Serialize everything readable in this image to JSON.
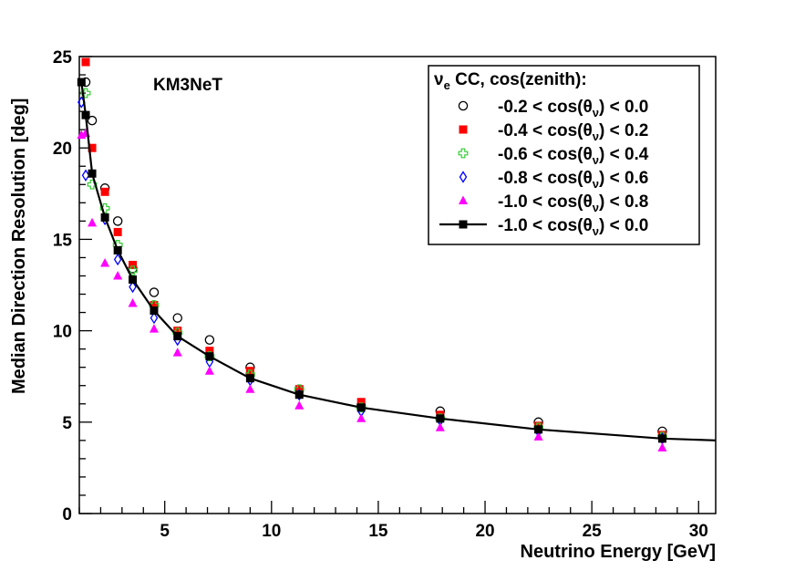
{
  "chart_data": {
    "type": "scatter",
    "title": "",
    "xlabel": "Neutrino Energy [GeV]",
    "ylabel": "Median Direction Resolution [deg]",
    "xlim": [
      1,
      30.8
    ],
    "ylim": [
      0,
      25
    ],
    "x_ticks": [
      5,
      10,
      15,
      20,
      25,
      30
    ],
    "y_ticks": [
      0,
      5,
      10,
      15,
      20,
      25
    ],
    "annotation": "KM3NeT",
    "legend": {
      "title_prefix": "ν",
      "title_sub": "e",
      "title_suffix": " CC, cos(zenith):",
      "position": "top-right"
    },
    "series": [
      {
        "name": "-0.2 < cos(θ",
        "name_sub": "ν",
        "name_tail": ") < 0.0",
        "marker": "open-circle",
        "color": "#000000",
        "x": [
          1.3,
          1.6,
          2.2,
          2.8,
          3.5,
          4.5,
          5.6,
          7.1,
          9.0,
          11.3,
          14.2,
          17.9,
          22.5,
          28.3
        ],
        "values": [
          23.6,
          21.5,
          17.8,
          16.0,
          13.4,
          12.1,
          10.7,
          9.5,
          8.0,
          6.8,
          5.9,
          5.6,
          5.0,
          4.5
        ]
      },
      {
        "name": "-0.4 < cos(θ",
        "name_sub": "ν",
        "name_tail": ") < 0.2",
        "marker": "filled-square",
        "color": "#ff0000",
        "x": [
          1.3,
          1.6,
          2.2,
          2.8,
          3.5,
          4.5,
          5.6,
          7.1,
          9.0,
          11.3,
          14.2,
          17.9,
          22.5,
          28.3
        ],
        "values": [
          24.7,
          20.0,
          17.6,
          15.4,
          13.6,
          11.4,
          10.0,
          8.9,
          7.8,
          6.8,
          6.1,
          5.4,
          4.8,
          4.3
        ]
      },
      {
        "name": "-0.6 < cos(θ",
        "name_sub": "ν",
        "name_tail": ") < 0.4",
        "marker": "open-cross",
        "color": "#33cc33",
        "x": [
          1.3,
          1.6,
          2.2,
          2.8,
          3.5,
          4.5,
          5.6,
          7.1,
          9.0,
          11.3,
          14.2,
          17.9,
          22.5,
          28.3
        ],
        "values": [
          23.0,
          18.0,
          16.7,
          14.7,
          13.3,
          11.4,
          9.9,
          8.6,
          7.6,
          6.8,
          5.8,
          5.2,
          4.7,
          4.2
        ]
      },
      {
        "name": "-0.8 < cos(θ",
        "name_sub": "ν",
        "name_tail": ") < 0.6",
        "marker": "open-diamond",
        "color": "#0000ff",
        "x": [
          1.1,
          1.3,
          2.2,
          2.8,
          3.5,
          4.5,
          5.6,
          7.1,
          9.0,
          11.3,
          14.2,
          17.9,
          22.5,
          28.3
        ],
        "values": [
          22.5,
          18.5,
          16.1,
          13.9,
          12.4,
          10.7,
          9.5,
          8.3,
          7.3,
          6.5,
          5.6,
          5.1,
          4.5,
          4.1
        ]
      },
      {
        "name": "-1.0 < cos(θ",
        "name_sub": "ν",
        "name_tail": ") < 0.8",
        "marker": "filled-triangle",
        "color": "#ff00ff",
        "x": [
          1.1,
          1.3,
          1.6,
          2.2,
          2.8,
          3.5,
          4.5,
          5.6,
          7.1,
          9.0,
          11.3,
          14.2,
          17.9,
          22.5,
          28.3
        ],
        "values": [
          20.7,
          20.8,
          15.9,
          13.7,
          13.0,
          11.5,
          10.1,
          8.8,
          7.8,
          6.8,
          5.9,
          5.2,
          4.7,
          4.2,
          3.6
        ]
      },
      {
        "name": "-1.0 < cos(θ",
        "name_sub": "ν",
        "name_tail": ") < 0.0",
        "marker": "filled-square-line",
        "color": "#000000",
        "x": [
          1.1,
          1.3,
          1.6,
          2.2,
          2.8,
          3.5,
          4.5,
          5.6,
          7.1,
          9.0,
          11.3,
          14.2,
          17.9,
          22.5,
          28.3
        ],
        "values": [
          23.6,
          21.8,
          18.6,
          16.2,
          14.4,
          12.8,
          11.1,
          9.7,
          8.6,
          7.4,
          6.5,
          5.8,
          5.2,
          4.6,
          4.1
        ],
        "fit_x": [
          1.1,
          1.3,
          1.6,
          2.2,
          2.8,
          3.5,
          4.5,
          5.6,
          7.1,
          9.0,
          11.3,
          14.2,
          17.9,
          22.5,
          28.3,
          30.8
        ],
        "fit_values": [
          23.6,
          21.8,
          18.6,
          16.2,
          14.4,
          12.8,
          11.1,
          9.7,
          8.6,
          7.4,
          6.5,
          5.8,
          5.2,
          4.6,
          4.1,
          4.0
        ]
      }
    ]
  }
}
